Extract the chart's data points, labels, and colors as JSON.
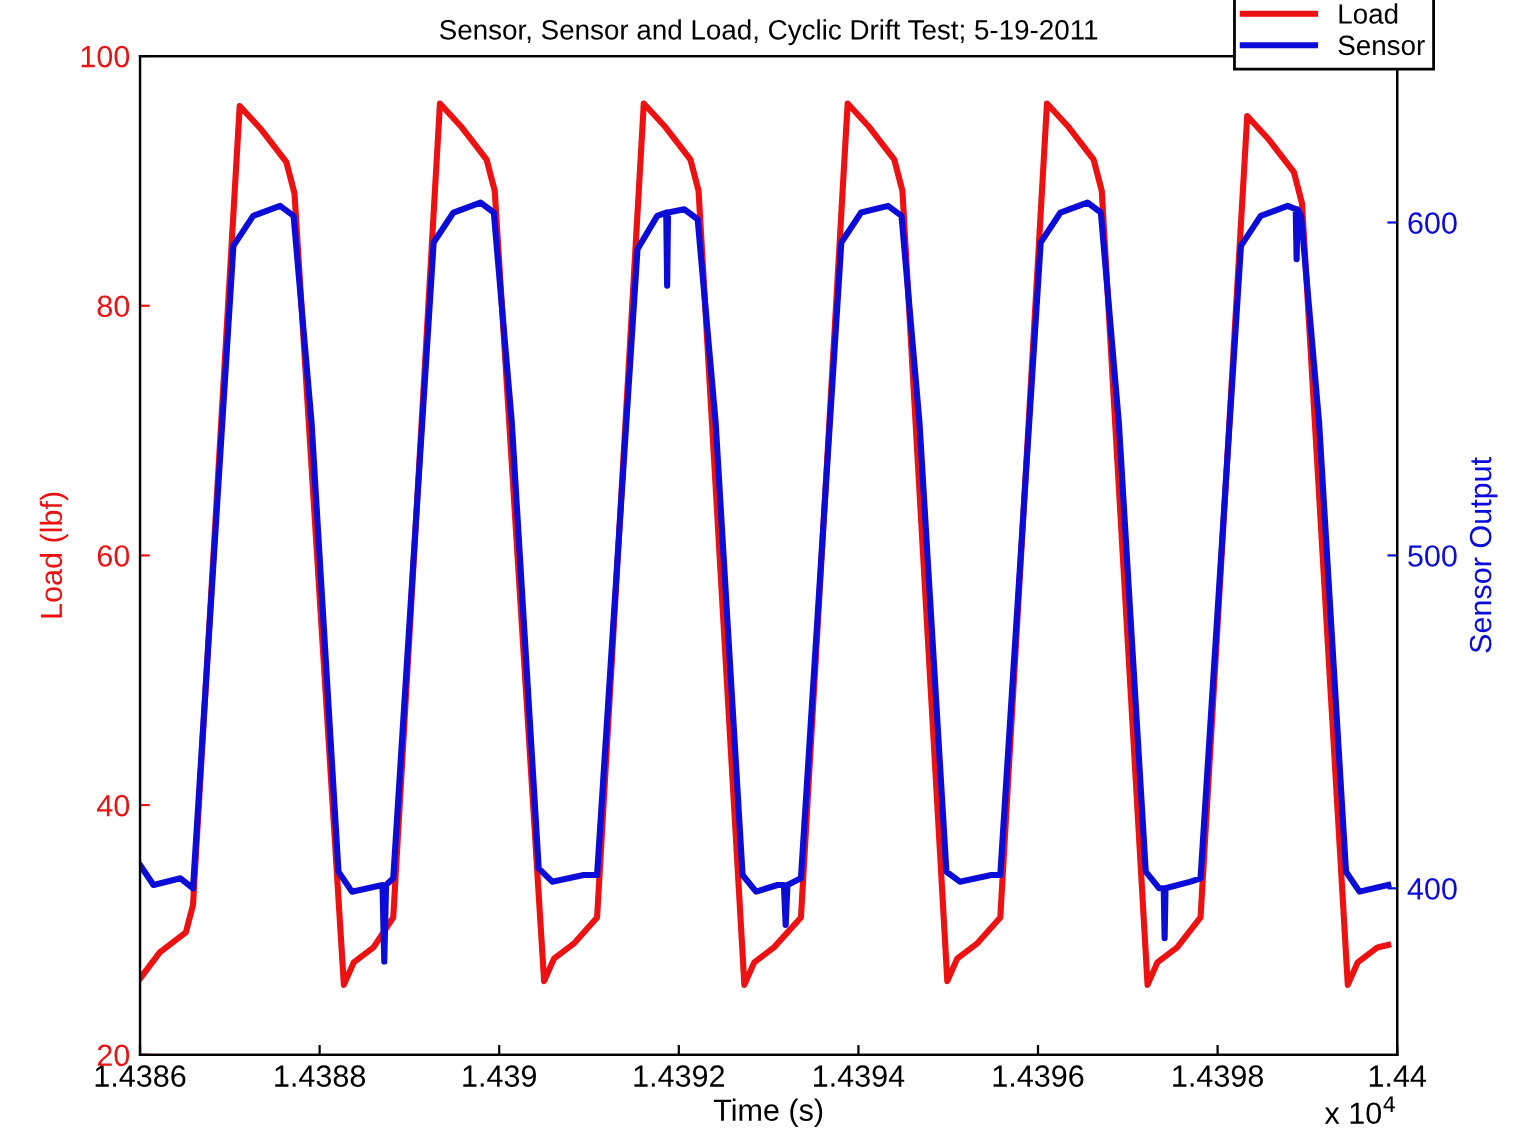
{
  "chart_data": {
    "type": "line",
    "title": "Sensor, Sensor and Load, Cyclic Drift Test; 5-19-2011",
    "xlabel": "Time (s)",
    "ylabel": "Load (lbf)",
    "y2label": "Sensor Output",
    "annotations": [
      "x 10$^{4}$"
    ],
    "xlim": [
      1.4386,
      1.44
    ],
    "xticks": [
      1.4386,
      1.4388,
      1.439,
      1.4392,
      1.4394,
      1.4396,
      1.4398,
      1.44
    ],
    "ylim": [
      20,
      100
    ],
    "yticks": [
      20,
      40,
      60,
      80,
      100
    ],
    "y2lim": [
      350,
      650
    ],
    "y2ticks": [
      400,
      500,
      600
    ],
    "grid": false,
    "legend": "top right",
    "marker": "none",
    "line_style": "solid",
    "series": [
      {
        "name": "Load",
        "color": "#ee1111",
        "x": [
          1.4386,
          1.438622,
          1.438651,
          1.438659,
          1.438711,
          1.438734,
          1.438763,
          1.438772,
          1.438827,
          1.438838,
          1.43886,
          1.438882,
          1.438934,
          1.438957,
          1.438986,
          1.438995,
          1.43905,
          1.439061,
          1.439083,
          1.439109,
          1.439161,
          1.439184,
          1.439213,
          1.439222,
          1.439273,
          1.439284,
          1.439306,
          1.439336,
          1.439388,
          1.439411,
          1.43944,
          1.439449,
          1.439499,
          1.43951,
          1.439532,
          1.439558,
          1.43961,
          1.439633,
          1.439662,
          1.439671,
          1.439722,
          1.439733,
          1.439755,
          1.439781,
          1.439833,
          1.439856,
          1.439885,
          1.439894,
          1.439945,
          1.439956,
          1.439978,
          1.43999
        ],
        "values": [
          26.1,
          28.2,
          29.8,
          32,
          96,
          94.2,
          91.5,
          89,
          25.6,
          27.4,
          28.6,
          31,
          96.2,
          94.4,
          91.7,
          89.2,
          25.9,
          27.7,
          28.9,
          31,
          96.2,
          94.4,
          91.7,
          89.2,
          25.6,
          27.4,
          28.6,
          31,
          96.2,
          94.4,
          91.7,
          89.2,
          25.9,
          27.7,
          28.9,
          31,
          96.2,
          94.4,
          91.7,
          89.2,
          25.6,
          27.4,
          28.6,
          31,
          95.2,
          93.4,
          90.7,
          88.2,
          25.6,
          27.4,
          28.6,
          28.8
        ]
      },
      {
        "name": "Sensor",
        "color": "#0c0cd8",
        "axis": "y2",
        "x": [
          1.4386,
          1.438615,
          1.438645,
          1.438659,
          1.438704,
          1.438726,
          1.438756,
          1.438771,
          1.438791,
          1.438821,
          1.438836,
          1.43887,
          1.438872,
          1.438874,
          1.438882,
          1.438927,
          1.438949,
          1.438979,
          1.438994,
          1.439014,
          1.439044,
          1.439059,
          1.439094,
          1.439109,
          1.439154,
          1.439176,
          1.439186,
          1.439187,
          1.439188,
          1.439206,
          1.439221,
          1.439241,
          1.439271,
          1.439286,
          1.43931,
          1.439317,
          1.439319,
          1.439321,
          1.439336,
          1.439381,
          1.439403,
          1.439433,
          1.439448,
          1.439468,
          1.439498,
          1.439513,
          1.439548,
          1.439558,
          1.439603,
          1.439625,
          1.439655,
          1.43967,
          1.43969,
          1.43972,
          1.439735,
          1.43974,
          1.439741,
          1.439742,
          1.43977,
          1.439781,
          1.439826,
          1.439848,
          1.439878,
          1.439887,
          1.439888,
          1.439889,
          1.439893,
          1.439913,
          1.439943,
          1.439958,
          1.43999
        ],
        "values": [
          407,
          401,
          403,
          400,
          593,
          602,
          605,
          602,
          540,
          405,
          399,
          401,
          378,
          401,
          403,
          594,
          603,
          606,
          603,
          540,
          406,
          402,
          404,
          404,
          592,
          602,
          603,
          581,
          603,
          604,
          601,
          540,
          404,
          399,
          401,
          401,
          389,
          401,
          403,
          594,
          603,
          605,
          602,
          540,
          405,
          402,
          404,
          404,
          594,
          603,
          606,
          603,
          540,
          405,
          400,
          400,
          385,
          400,
          402,
          403,
          593,
          602,
          605,
          604,
          589,
          604,
          602,
          540,
          405,
          399,
          401
        ]
      }
    ]
  }
}
